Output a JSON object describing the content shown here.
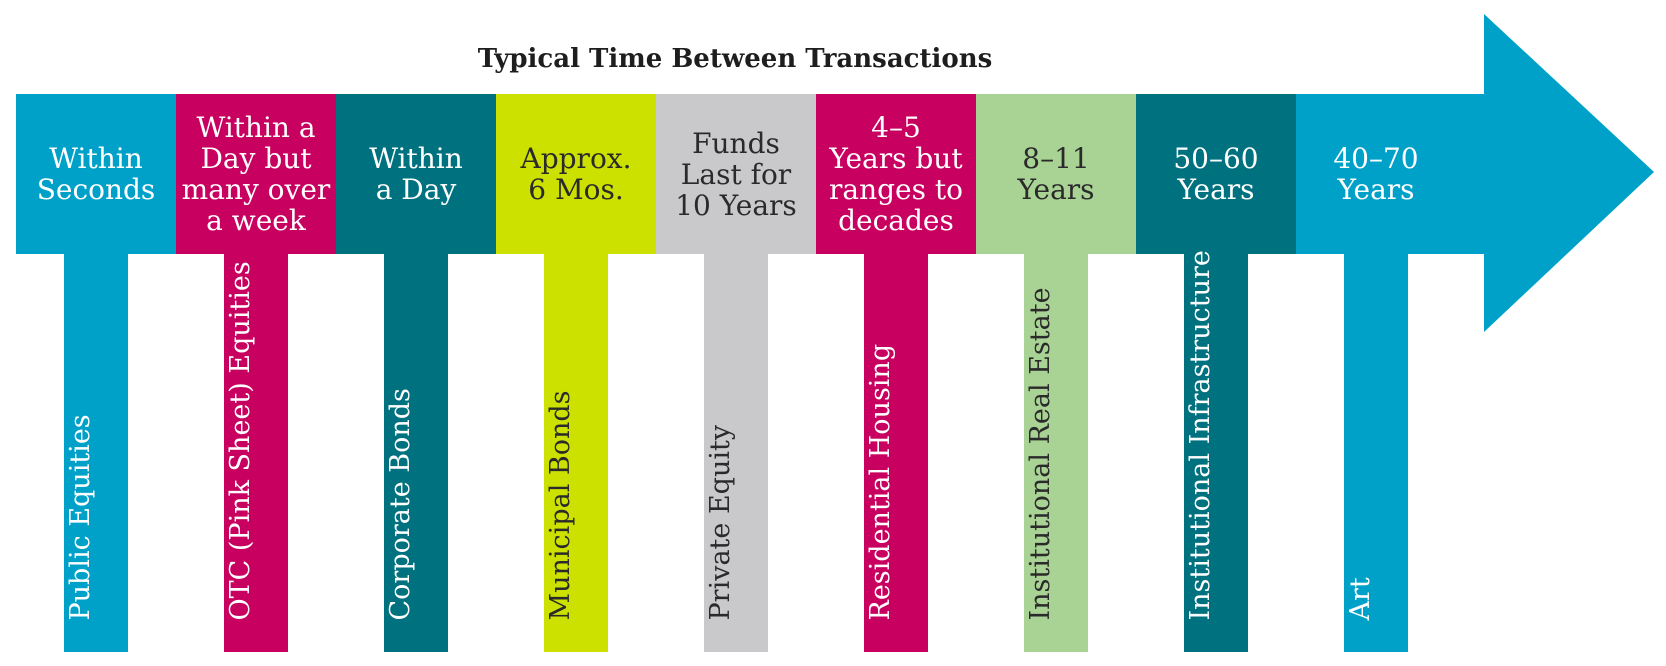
{
  "title": "Typical Time Between Transactions",
  "colors": {
    "arrow": "#00A1C9",
    "blue": "#00A1C9",
    "magenta": "#C8005F",
    "teal": "#00717F",
    "lime": "#CDE100",
    "gray": "#C9C9CB",
    "green": "#A9D394"
  },
  "items": [
    {
      "period": "Within\nSeconds",
      "asset": "Public Equities",
      "color": "#00A1C9",
      "dark_text": false
    },
    {
      "period": "Within a\nDay but\nmany over\na week",
      "asset": "OTC (Pink Sheet) Equities",
      "color": "#C8005F",
      "dark_text": false
    },
    {
      "period": "Within\na Day",
      "asset": "Corporate Bonds",
      "color": "#00717F",
      "dark_text": false
    },
    {
      "period": "Approx.\n6 Mos.",
      "asset": "Municipal Bonds",
      "color": "#CDE100",
      "dark_text": true
    },
    {
      "period": "Funds\nLast for\n10 Years",
      "asset": "Private Equity",
      "color": "#C9C9CB",
      "dark_text": true
    },
    {
      "period": "4–5\nYears but\nranges to\ndecades",
      "asset": "Residential Housing",
      "color": "#C8005F",
      "dark_text": false
    },
    {
      "period": "8–11\nYears",
      "asset": "Institutional Real Estate",
      "color": "#A9D394",
      "dark_text": true
    },
    {
      "period": "50–60\nYears",
      "asset": "Institutional Infrastructure",
      "color": "#00717F",
      "dark_text": false
    },
    {
      "period": "40–70\nYears",
      "asset": "Art",
      "color": "#00A1C9",
      "dark_text": false
    }
  ]
}
